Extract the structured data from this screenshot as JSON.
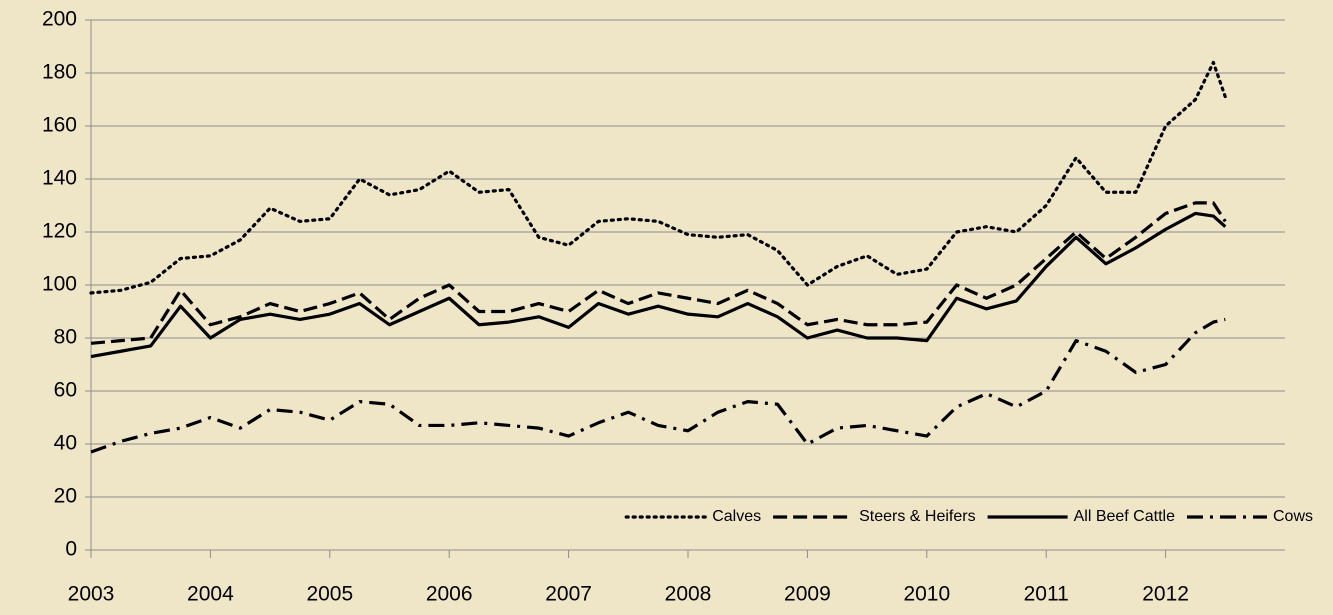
{
  "chart_data": {
    "type": "line",
    "x": [
      2003,
      2003.25,
      2003.5,
      2003.75,
      2004,
      2004.25,
      2004.5,
      2004.75,
      2005,
      2005.25,
      2005.5,
      2005.75,
      2006,
      2006.25,
      2006.5,
      2006.75,
      2007,
      2007.25,
      2007.5,
      2007.75,
      2008,
      2008.25,
      2008.5,
      2008.75,
      2009,
      2009.25,
      2009.5,
      2009.75,
      2010,
      2010.25,
      2010.5,
      2010.75,
      2011,
      2011.25,
      2011.5,
      2011.75,
      2012,
      2012.25,
      2012.4,
      2012.5
    ],
    "series": [
      {
        "name": "Calves",
        "color": "#000000",
        "dash": "dotted",
        "values": [
          97,
          98,
          101,
          110,
          111,
          117,
          129,
          124,
          125,
          140,
          134,
          136,
          143,
          135,
          136,
          118,
          115,
          124,
          125,
          124,
          119,
          118,
          119,
          113,
          100,
          107,
          111,
          104,
          106,
          120,
          122,
          120,
          130,
          148,
          135,
          135,
          160,
          170,
          184,
          171
        ]
      },
      {
        "name": "Steers & Heifers",
        "color": "#000000",
        "dash": "dashed",
        "values": [
          78,
          79,
          80,
          98,
          85,
          88,
          93,
          90,
          93,
          97,
          87,
          95,
          100,
          90,
          90,
          93,
          90,
          98,
          93,
          97,
          95,
          93,
          98,
          93,
          85,
          87,
          85,
          85,
          86,
          100,
          95,
          100,
          110,
          120,
          110,
          118,
          127,
          131,
          131,
          124
        ]
      },
      {
        "name": "All Beef Cattle",
        "color": "#000000",
        "dash": "solid",
        "values": [
          73,
          75,
          77,
          92,
          80,
          87,
          89,
          87,
          89,
          93,
          85,
          90,
          95,
          85,
          86,
          88,
          84,
          93,
          89,
          92,
          89,
          88,
          93,
          88,
          80,
          83,
          80,
          80,
          79,
          95,
          91,
          94,
          107,
          118,
          108,
          114,
          121,
          127,
          126,
          122
        ]
      },
      {
        "name": "Cows",
        "color": "#000000",
        "dash": "dashdot",
        "values": [
          37,
          41,
          44,
          46,
          50,
          46,
          53,
          52,
          49,
          56,
          55,
          47,
          47,
          48,
          47,
          46,
          43,
          48,
          52,
          47,
          45,
          52,
          56,
          55,
          40,
          46,
          47,
          45,
          43,
          54,
          59,
          54,
          60,
          79,
          75,
          67,
          70,
          82,
          86,
          87
        ]
      }
    ],
    "xlim": [
      2003,
      2013
    ],
    "xticks": [
      2003,
      2004,
      2005,
      2006,
      2007,
      2008,
      2009,
      2010,
      2011,
      2012
    ],
    "ylim": [
      0,
      200
    ],
    "yticks": [
      0,
      20,
      40,
      60,
      80,
      100,
      120,
      140,
      160,
      180,
      200
    ],
    "grid": true,
    "legend": "lower right"
  }
}
